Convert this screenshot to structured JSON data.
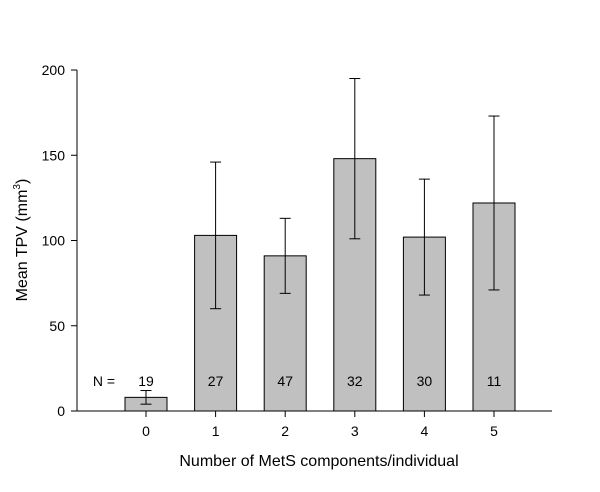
{
  "chart_data": {
    "type": "bar",
    "categories": [
      "0",
      "1",
      "2",
      "3",
      "4",
      "5"
    ],
    "values": [
      8,
      103,
      91,
      148,
      102,
      122
    ],
    "error_low": [
      4,
      60,
      69,
      101,
      68,
      71
    ],
    "error_high": [
      12,
      146,
      113,
      195,
      136,
      173
    ],
    "n_prefix": "N =",
    "n_values": [
      "19",
      "27",
      "47",
      "32",
      "30",
      "11"
    ],
    "xlabel": "Number of MetS components/individual",
    "ylabel_main": "Mean TPV (mm",
    "ylabel_sup": "3",
    "ylabel_close": ")",
    "ylim": [
      0,
      200
    ],
    "yticks": [
      0,
      50,
      100,
      150,
      200
    ],
    "ytick_labels": [
      "0",
      "50",
      "100",
      "150",
      "200"
    ],
    "grid": false,
    "bar_color": "#c0c0c0",
    "edge_color": "#000000"
  }
}
